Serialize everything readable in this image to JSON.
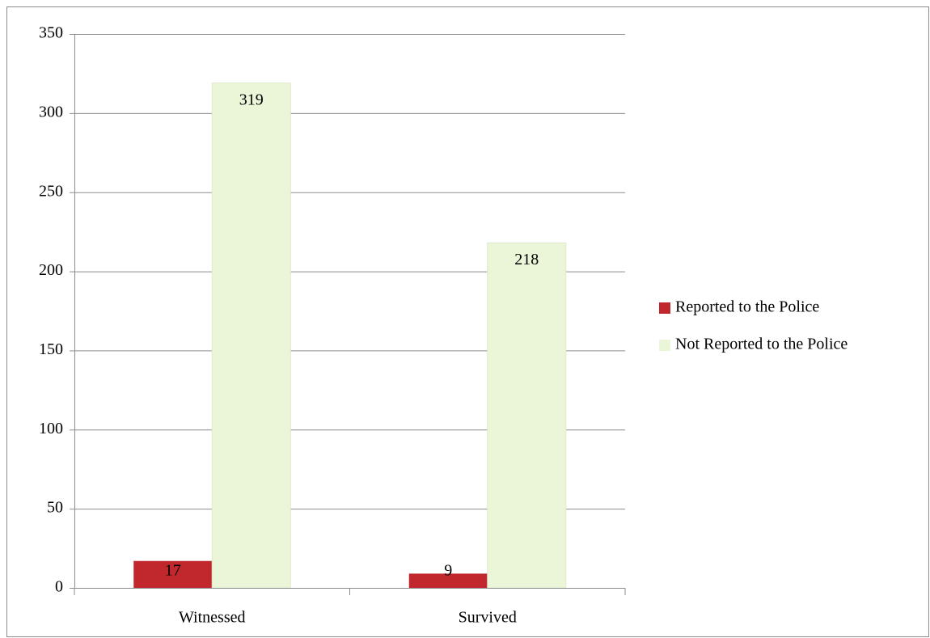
{
  "chart_data": {
    "type": "bar",
    "categories": [
      "Witnessed",
      "Survived"
    ],
    "series": [
      {
        "name": "Reported to the Police",
        "color": "#c0282d",
        "values": [
          17,
          9
        ]
      },
      {
        "name": "Not Reported to the Police",
        "color": "#ebf5d7",
        "values": [
          319,
          218
        ]
      }
    ],
    "ylim": [
      0,
      350
    ],
    "yticks": [
      0,
      50,
      100,
      150,
      200,
      250,
      300,
      350
    ],
    "grid": true,
    "legend": "right"
  }
}
